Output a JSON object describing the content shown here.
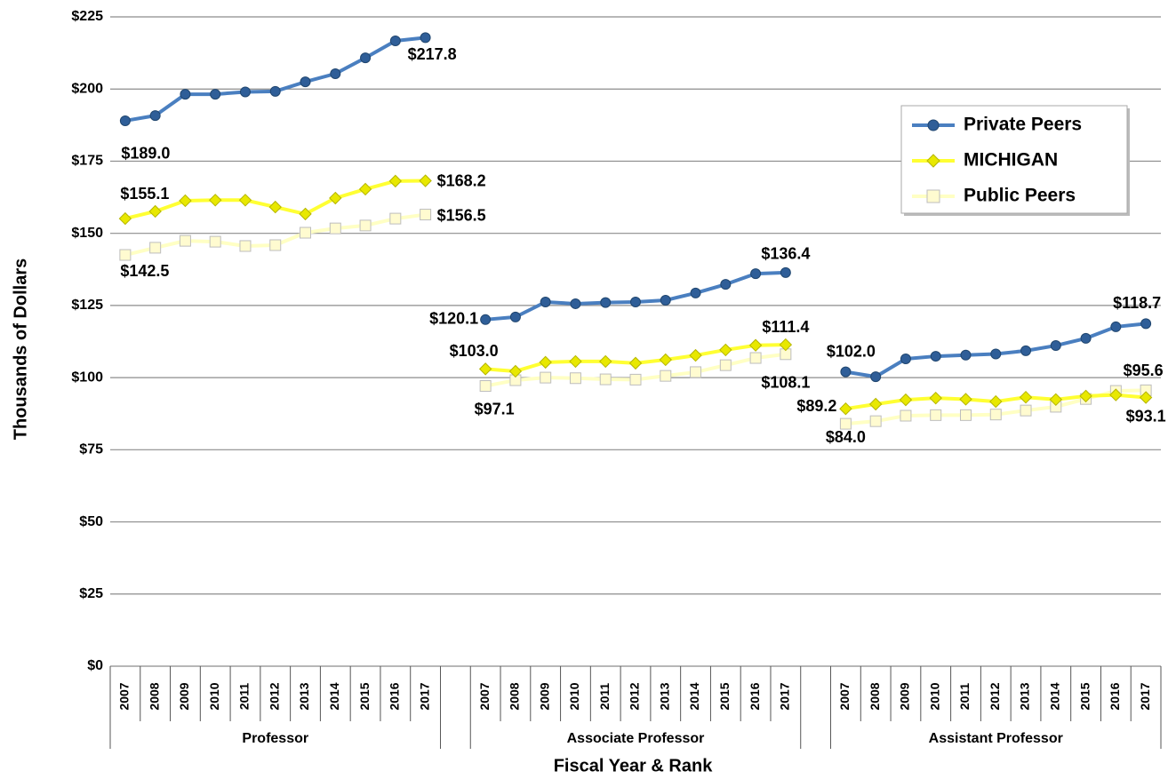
{
  "chart_data": {
    "type": "line",
    "y_axis_label": "Thousands of Dollars",
    "x_axis_label": "Fiscal Year & Rank",
    "groups": [
      "Professor",
      "Associate Professor",
      "Assistant Professor"
    ],
    "categories": [
      "2007",
      "2008",
      "2009",
      "2010",
      "2011",
      "2012",
      "2013",
      "2014",
      "2015",
      "2016",
      "2017",
      null,
      "2007",
      "2008",
      "2009",
      "2010",
      "2011",
      "2012",
      "2013",
      "2014",
      "2015",
      "2016",
      "2017",
      null,
      "2007",
      "2008",
      "2009",
      "2010",
      "2011",
      "2012",
      "2013",
      "2014",
      "2015",
      "2016",
      "2017"
    ],
    "ylim": [
      0,
      225
    ],
    "yticks": [
      {
        "value": 0,
        "label": "$0"
      },
      {
        "value": 25,
        "label": "$25"
      },
      {
        "value": 50,
        "label": "$50"
      },
      {
        "value": 75,
        "label": "$75"
      },
      {
        "value": 100,
        "label": "$100"
      },
      {
        "value": 125,
        "label": "$125"
      },
      {
        "value": 150,
        "label": "$150"
      },
      {
        "value": 175,
        "label": "$175"
      },
      {
        "value": 200,
        "label": "$200"
      },
      {
        "value": 225,
        "label": "$225"
      }
    ],
    "grid": true,
    "legend": "upper right",
    "series": [
      {
        "name": "Private Peers",
        "color": "#4a7fc0",
        "marker_color": "#2f5e98",
        "marker": "circle",
        "values": [
          189.0,
          190.8,
          198.2,
          198.2,
          199.0,
          199.2,
          202.5,
          205.3,
          210.8,
          216.7,
          217.8,
          null,
          120.1,
          121.0,
          126.2,
          125.6,
          126.0,
          126.2,
          126.8,
          129.3,
          132.3,
          136.0,
          136.4,
          null,
          102.0,
          100.3,
          106.5,
          107.4,
          107.8,
          108.2,
          109.3,
          111.1,
          113.6,
          117.6,
          118.7
        ],
        "value_labels": [
          "$189.0",
          null,
          null,
          null,
          null,
          null,
          null,
          null,
          null,
          null,
          "$217.8",
          null,
          "$120.1",
          null,
          null,
          null,
          null,
          null,
          null,
          null,
          null,
          null,
          "$136.4",
          null,
          "$102.0",
          null,
          null,
          null,
          null,
          null,
          null,
          null,
          null,
          null,
          "$118.7"
        ]
      },
      {
        "name": "MICHIGAN",
        "color": "#ffff33",
        "marker_color": "#e8e800",
        "marker": "diamond",
        "values": [
          155.1,
          157.6,
          161.3,
          161.5,
          161.5,
          159.1,
          156.7,
          162.2,
          165.3,
          168.1,
          168.2,
          null,
          103.0,
          102.2,
          105.3,
          105.6,
          105.6,
          105.0,
          106.2,
          107.7,
          109.6,
          111.2,
          111.4,
          null,
          89.2,
          90.8,
          92.3,
          92.9,
          92.5,
          91.7,
          93.2,
          92.4,
          93.6,
          94.0,
          93.1
        ],
        "value_labels": [
          "$155.1",
          null,
          null,
          null,
          null,
          null,
          null,
          null,
          null,
          null,
          "$168.2",
          null,
          "$103.0",
          null,
          null,
          null,
          null,
          null,
          null,
          null,
          null,
          null,
          "$111.4",
          null,
          "$89.2",
          null,
          null,
          null,
          null,
          null,
          null,
          null,
          null,
          null,
          "$93.1"
        ]
      },
      {
        "name": "Public Peers",
        "color": "#ffffc4",
        "marker_color": "#fffbd0",
        "marker": "square",
        "values": [
          142.5,
          145.0,
          147.4,
          147.1,
          145.6,
          145.9,
          150.2,
          151.7,
          152.7,
          155.1,
          156.5,
          null,
          97.1,
          99.1,
          100.0,
          99.8,
          99.4,
          99.3,
          100.6,
          101.9,
          104.3,
          106.8,
          108.1,
          null,
          84.0,
          84.9,
          86.8,
          87.0,
          87.0,
          87.2,
          88.6,
          89.9,
          92.6,
          95.4,
          95.6
        ],
        "value_labels": [
          "$142.5",
          null,
          null,
          null,
          null,
          null,
          null,
          null,
          null,
          null,
          "$156.5",
          null,
          "$97.1",
          null,
          null,
          null,
          null,
          null,
          null,
          null,
          null,
          null,
          "$108.1",
          null,
          "$84.0",
          null,
          null,
          null,
          null,
          null,
          null,
          null,
          null,
          null,
          "$95.6"
        ]
      }
    ]
  }
}
